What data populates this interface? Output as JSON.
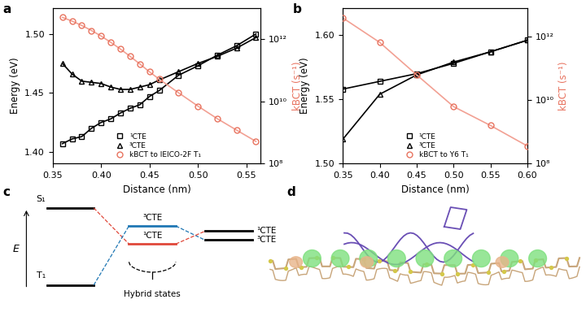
{
  "chart_data": [
    {
      "type": "line",
      "label": "a",
      "x_label": "Distance (nm)",
      "y_label": "Energy (eV)",
      "y2_label": "kBCT (s⁻¹)",
      "xlim": [
        0.35,
        0.565
      ],
      "xticks": [
        {
          "value": 0.35,
          "label": "0.35"
        },
        {
          "value": 0.4,
          "label": "0.40"
        },
        {
          "value": 0.45,
          "label": "0.45"
        },
        {
          "value": 0.5,
          "label": "0.50"
        },
        {
          "value": 0.55,
          "label": "0.55"
        }
      ],
      "ylim": [
        1.39,
        1.522
      ],
      "yticks": [
        {
          "value": 1.4,
          "label": "1.40"
        },
        {
          "value": 1.45,
          "label": "1.45"
        },
        {
          "value": 1.5,
          "label": "1.50"
        }
      ],
      "y2lim": [
        100000000.0,
        10000000000000.0
      ],
      "log": "y2",
      "y2ticks": [
        {
          "value": 100000000.0,
          "label": "10⁸"
        },
        {
          "value": 10000000000.0,
          "label": "10¹⁰"
        },
        {
          "value": 1000000000000.0,
          "label": "10¹²"
        }
      ],
      "legend": "lower center",
      "series": [
        {
          "name": "¹CTE",
          "color": "#000000",
          "marker": "square",
          "x": [
            0.36,
            0.37,
            0.38,
            0.39,
            0.4,
            0.41,
            0.42,
            0.43,
            0.44,
            0.45,
            0.46,
            0.48,
            0.5,
            0.52,
            0.54,
            0.56
          ],
          "values": [
            1.407,
            1.411,
            1.413,
            1.42,
            1.425,
            1.428,
            1.433,
            1.437,
            1.44,
            1.447,
            1.452,
            1.465,
            1.473,
            1.482,
            1.49,
            1.5
          ]
        },
        {
          "name": "³CTE",
          "color": "#000000",
          "marker": "triangle",
          "x": [
            0.36,
            0.37,
            0.38,
            0.39,
            0.4,
            0.41,
            0.42,
            0.43,
            0.44,
            0.45,
            0.46,
            0.48,
            0.5,
            0.52,
            0.54,
            0.56
          ],
          "values": [
            1.475,
            1.466,
            1.46,
            1.459,
            1.458,
            1.455,
            1.453,
            1.453,
            1.455,
            1.457,
            1.461,
            1.468,
            1.475,
            1.481,
            1.488,
            1.497
          ]
        },
        {
          "name": "kBCT to IEICO-2F T₁",
          "color": "#e8735f",
          "marker": "circle",
          "axis": "y2",
          "x": [
            0.36,
            0.37,
            0.38,
            0.39,
            0.4,
            0.41,
            0.42,
            0.43,
            0.44,
            0.45,
            0.46,
            0.48,
            0.5,
            0.52,
            0.54,
            0.56
          ],
          "values": [
            5000000000000.0,
            3800000000000.0,
            2750000000000.0,
            1900000000000.0,
            1260000000000.0,
            790000000000.0,
            480000000000.0,
            280000000000.0,
            160000000000.0,
            89000000000.0,
            52000000000.0,
            19000000000.0,
            7100000000.0,
            2800000000.0,
            1200000000.0,
            520000000.0
          ]
        }
      ]
    },
    {
      "type": "line",
      "label": "b",
      "x_label": "Distance (nm)",
      "y_label": "Energy (eV)",
      "y2_label": "kBCT (s⁻¹)",
      "xlim": [
        0.35,
        0.6
      ],
      "xticks": [
        {
          "value": 0.35,
          "label": "0.35"
        },
        {
          "value": 0.4,
          "label": "0.40"
        },
        {
          "value": 0.45,
          "label": "0.45"
        },
        {
          "value": 0.5,
          "label": "0.50"
        },
        {
          "value": 0.55,
          "label": "0.55"
        },
        {
          "value": 0.6,
          "label": "0.60"
        }
      ],
      "ylim": [
        1.5,
        1.621
      ],
      "yticks": [
        {
          "value": 1.5,
          "label": "1.50"
        },
        {
          "value": 1.55,
          "label": "1.55"
        },
        {
          "value": 1.6,
          "label": "1.60"
        }
      ],
      "y2lim": [
        100000000.0,
        8000000000000.0
      ],
      "log": "y2",
      "y2ticks": [
        {
          "value": 100000000.0,
          "label": "10⁸"
        },
        {
          "value": 10000000000.0,
          "label": "10¹⁰"
        },
        {
          "value": 1000000000000.0,
          "label": "10¹²"
        }
      ],
      "legend": "lower center",
      "series": [
        {
          "name": "¹CTE",
          "color": "#000000",
          "marker": "square",
          "x": [
            0.35,
            0.4,
            0.45,
            0.5,
            0.55,
            0.6
          ],
          "values": [
            1.558,
            1.564,
            1.57,
            1.578,
            1.587,
            1.596
          ]
        },
        {
          "name": "³CTE",
          "color": "#000000",
          "marker": "triangle",
          "x": [
            0.35,
            0.4,
            0.45,
            0.5,
            0.55,
            0.6
          ],
          "values": [
            1.519,
            1.554,
            1.569,
            1.579,
            1.587,
            1.596
          ]
        },
        {
          "name": "kBCT to Y6 T₁",
          "color": "#e8735f",
          "marker": "circle",
          "axis": "y2",
          "x": [
            0.35,
            0.4,
            0.45,
            0.5,
            0.55,
            0.6
          ],
          "values": [
            3900000000000.0,
            660000000000.0,
            63000000000.0,
            6300000000.0,
            1600000000.0,
            360000000.0
          ]
        }
      ]
    }
  ],
  "diagram": {
    "label": "c",
    "axis_label": "E",
    "left_levels": [
      "S₁",
      "T₁"
    ],
    "hybrid_levels": [
      "³CTE",
      "¹CTE"
    ],
    "right_levels": [
      "¹CTE",
      "³CTE"
    ],
    "bracket_label": "Hybrid states"
  },
  "image": {
    "label": "d"
  }
}
